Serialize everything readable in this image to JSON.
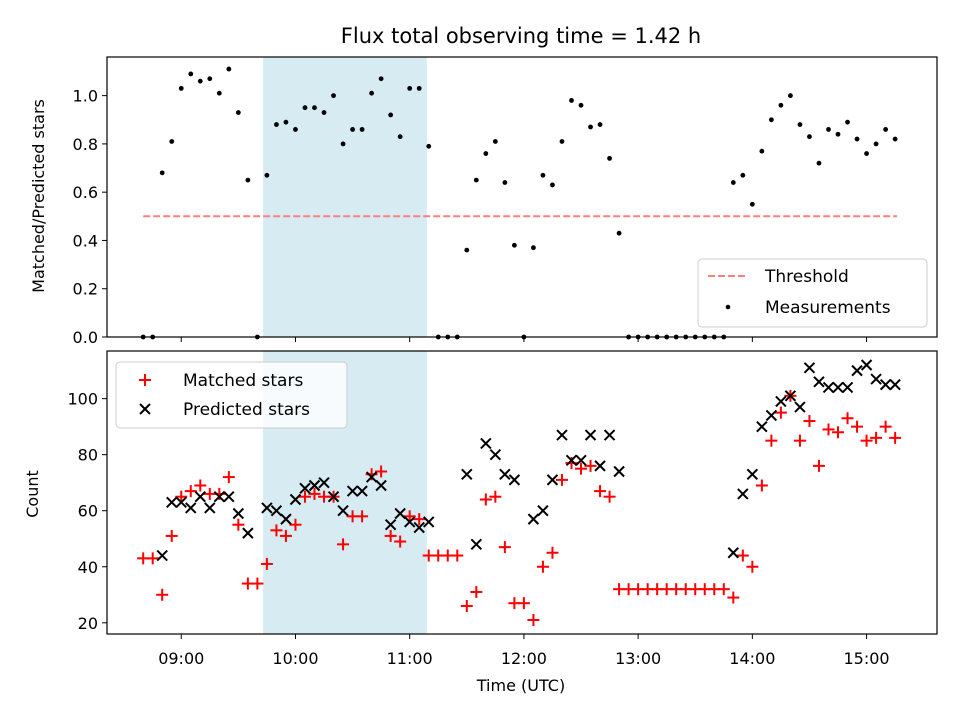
{
  "chart_data": [
    {
      "type": "scatter",
      "title": "Flux total observing time = 1.42 h",
      "ylabel": "Matched/Predicted stars",
      "xlabel": "",
      "xlim": [
        "08:21",
        "15:37"
      ],
      "ylim": [
        0,
        1.16
      ],
      "yticks": [
        "0.0",
        "0.2",
        "0.4",
        "0.6",
        "0.8",
        "1.0"
      ],
      "shaded_interval": [
        "09:43",
        "11:09"
      ],
      "shade_color": "#add8e6",
      "legend_position": "lower-right",
      "threshold": {
        "name": "Threshold",
        "y": 0.5,
        "x": [
          "08:40",
          "15:16"
        ],
        "color": "#ff7f7f",
        "style": "dashed"
      },
      "measurements": {
        "name": "Measurements",
        "color": "#000000",
        "points": [
          [
            "08:40",
            0.0
          ],
          [
            "08:45",
            0.0
          ],
          [
            "08:50",
            0.68
          ],
          [
            "08:55",
            0.81
          ],
          [
            "09:00",
            1.03
          ],
          [
            "09:05",
            1.09
          ],
          [
            "09:10",
            1.06
          ],
          [
            "09:15",
            1.07
          ],
          [
            "09:20",
            1.01
          ],
          [
            "09:25",
            1.11
          ],
          [
            "09:30",
            0.93
          ],
          [
            "09:35",
            0.65
          ],
          [
            "09:40",
            0.0
          ],
          [
            "09:45",
            0.67
          ],
          [
            "09:50",
            0.88
          ],
          [
            "09:55",
            0.89
          ],
          [
            "10:00",
            0.86
          ],
          [
            "10:05",
            0.95
          ],
          [
            "10:10",
            0.95
          ],
          [
            "10:15",
            0.93
          ],
          [
            "10:20",
            1.0
          ],
          [
            "10:25",
            0.8
          ],
          [
            "10:30",
            0.86
          ],
          [
            "10:35",
            0.86
          ],
          [
            "10:40",
            1.01
          ],
          [
            "10:45",
            1.07
          ],
          [
            "10:50",
            0.92
          ],
          [
            "10:55",
            0.83
          ],
          [
            "11:00",
            1.03
          ],
          [
            "11:05",
            1.03
          ],
          [
            "11:10",
            0.79
          ],
          [
            "11:15",
            0.0
          ],
          [
            "11:20",
            0.0
          ],
          [
            "11:25",
            0.0
          ],
          [
            "11:30",
            0.36
          ],
          [
            "11:35",
            0.65
          ],
          [
            "11:40",
            0.76
          ],
          [
            "11:45",
            0.81
          ],
          [
            "11:50",
            0.64
          ],
          [
            "11:55",
            0.38
          ],
          [
            "12:00",
            0.0
          ],
          [
            "12:05",
            0.37
          ],
          [
            "12:10",
            0.67
          ],
          [
            "12:15",
            0.63
          ],
          [
            "12:20",
            0.81
          ],
          [
            "12:25",
            0.98
          ],
          [
            "12:30",
            0.96
          ],
          [
            "12:35",
            0.87
          ],
          [
            "12:40",
            0.88
          ],
          [
            "12:45",
            0.74
          ],
          [
            "12:50",
            0.43
          ],
          [
            "12:55",
            0.0
          ],
          [
            "13:00",
            0.0
          ],
          [
            "13:05",
            0.0
          ],
          [
            "13:10",
            0.0
          ],
          [
            "13:15",
            0.0
          ],
          [
            "13:20",
            0.0
          ],
          [
            "13:25",
            0.0
          ],
          [
            "13:30",
            0.0
          ],
          [
            "13:35",
            0.0
          ],
          [
            "13:40",
            0.0
          ],
          [
            "13:45",
            0.0
          ],
          [
            "13:50",
            0.64
          ],
          [
            "13:55",
            0.67
          ],
          [
            "14:00",
            0.55
          ],
          [
            "14:05",
            0.77
          ],
          [
            "14:10",
            0.9
          ],
          [
            "14:15",
            0.96
          ],
          [
            "14:20",
            1.0
          ],
          [
            "14:25",
            0.88
          ],
          [
            "14:30",
            0.83
          ],
          [
            "14:35",
            0.72
          ],
          [
            "14:40",
            0.86
          ],
          [
            "14:45",
            0.84
          ],
          [
            "14:50",
            0.89
          ],
          [
            "14:55",
            0.82
          ],
          [
            "15:00",
            0.76
          ],
          [
            "15:05",
            0.8
          ],
          [
            "15:10",
            0.86
          ],
          [
            "15:15",
            0.82
          ]
        ]
      }
    },
    {
      "type": "scatter",
      "title": "",
      "ylabel": "Count",
      "xlabel": "Time (UTC)",
      "xlim": [
        "08:21",
        "15:37"
      ],
      "ylim": [
        16,
        117
      ],
      "yticks": [
        "20",
        "40",
        "60",
        "80",
        "100"
      ],
      "xticks": [
        "09:00",
        "10:00",
        "11:00",
        "12:00",
        "13:00",
        "14:00",
        "15:00"
      ],
      "shaded_interval": [
        "09:43",
        "11:09"
      ],
      "shade_color": "#add8e6",
      "legend_position": "upper-left",
      "series": [
        {
          "name": "Matched stars",
          "marker": "+",
          "color": "#ff0000",
          "points": [
            [
              "08:40",
              43
            ],
            [
              "08:45",
              43
            ],
            [
              "08:50",
              30
            ],
            [
              "08:55",
              51
            ],
            [
              "09:00",
              65
            ],
            [
              "09:05",
              67
            ],
            [
              "09:10",
              69
            ],
            [
              "09:15",
              66
            ],
            [
              "09:20",
              66
            ],
            [
              "09:25",
              72
            ],
            [
              "09:30",
              55
            ],
            [
              "09:35",
              34
            ],
            [
              "09:40",
              34
            ],
            [
              "09:45",
              41
            ],
            [
              "09:50",
              53
            ],
            [
              "09:55",
              51
            ],
            [
              "10:00",
              55
            ],
            [
              "10:05",
              65
            ],
            [
              "10:10",
              66
            ],
            [
              "10:15",
              65
            ],
            [
              "10:20",
              65
            ],
            [
              "10:25",
              48
            ],
            [
              "10:30",
              58
            ],
            [
              "10:35",
              58
            ],
            [
              "10:40",
              73
            ],
            [
              "10:45",
              74
            ],
            [
              "10:50",
              51
            ],
            [
              "10:55",
              49
            ],
            [
              "11:00",
              58
            ],
            [
              "11:05",
              57
            ],
            [
              "11:10",
              44
            ],
            [
              "11:15",
              44
            ],
            [
              "11:20",
              44
            ],
            [
              "11:25",
              44
            ],
            [
              "11:30",
              26
            ],
            [
              "11:35",
              31
            ],
            [
              "11:40",
              64
            ],
            [
              "11:45",
              65
            ],
            [
              "11:50",
              47
            ],
            [
              "11:55",
              27
            ],
            [
              "12:00",
              27
            ],
            [
              "12:05",
              21
            ],
            [
              "12:10",
              40
            ],
            [
              "12:15",
              45
            ],
            [
              "12:20",
              71
            ],
            [
              "12:25",
              77
            ],
            [
              "12:30",
              75
            ],
            [
              "12:35",
              76
            ],
            [
              "12:40",
              67
            ],
            [
              "12:45",
              65
            ],
            [
              "12:50",
              32
            ],
            [
              "12:55",
              32
            ],
            [
              "13:00",
              32
            ],
            [
              "13:05",
              32
            ],
            [
              "13:10",
              32
            ],
            [
              "13:15",
              32
            ],
            [
              "13:20",
              32
            ],
            [
              "13:25",
              32
            ],
            [
              "13:30",
              32
            ],
            [
              "13:35",
              32
            ],
            [
              "13:40",
              32
            ],
            [
              "13:45",
              32
            ],
            [
              "13:50",
              29
            ],
            [
              "13:55",
              44
            ],
            [
              "14:00",
              40
            ],
            [
              "14:05",
              69
            ],
            [
              "14:10",
              85
            ],
            [
              "14:15",
              95
            ],
            [
              "14:20",
              101
            ],
            [
              "14:25",
              85
            ],
            [
              "14:30",
              92
            ],
            [
              "14:35",
              76
            ],
            [
              "14:40",
              89
            ],
            [
              "14:45",
              88
            ],
            [
              "14:50",
              93
            ],
            [
              "14:55",
              90
            ],
            [
              "15:00",
              85
            ],
            [
              "15:05",
              86
            ],
            [
              "15:10",
              90
            ],
            [
              "15:15",
              86
            ]
          ]
        },
        {
          "name": "Predicted stars",
          "marker": "x",
          "color": "#000000",
          "points": [
            [
              "08:50",
              44
            ],
            [
              "08:55",
              63
            ],
            [
              "09:00",
              63
            ],
            [
              "09:05",
              61
            ],
            [
              "09:10",
              65
            ],
            [
              "09:15",
              61
            ],
            [
              "09:20",
              65
            ],
            [
              "09:25",
              65
            ],
            [
              "09:30",
              59
            ],
            [
              "09:35",
              52
            ],
            [
              "09:45",
              61
            ],
            [
              "09:50",
              60
            ],
            [
              "09:55",
              57
            ],
            [
              "10:00",
              64
            ],
            [
              "10:05",
              68
            ],
            [
              "10:10",
              69
            ],
            [
              "10:15",
              70
            ],
            [
              "10:20",
              65
            ],
            [
              "10:25",
              60
            ],
            [
              "10:30",
              67
            ],
            [
              "10:35",
              67
            ],
            [
              "10:40",
              72
            ],
            [
              "10:45",
              69
            ],
            [
              "10:50",
              55
            ],
            [
              "10:55",
              59
            ],
            [
              "11:00",
              56
            ],
            [
              "11:05",
              54
            ],
            [
              "11:10",
              56
            ],
            [
              "11:30",
              73
            ],
            [
              "11:35",
              48
            ],
            [
              "11:40",
              84
            ],
            [
              "11:45",
              80
            ],
            [
              "11:50",
              73
            ],
            [
              "11:55",
              71
            ],
            [
              "12:05",
              57
            ],
            [
              "12:10",
              60
            ],
            [
              "12:15",
              71
            ],
            [
              "12:20",
              87
            ],
            [
              "12:25",
              78
            ],
            [
              "12:30",
              78
            ],
            [
              "12:35",
              87
            ],
            [
              "12:40",
              76
            ],
            [
              "12:45",
              87
            ],
            [
              "12:50",
              74
            ],
            [
              "13:50",
              45
            ],
            [
              "13:55",
              66
            ],
            [
              "14:00",
              73
            ],
            [
              "14:05",
              90
            ],
            [
              "14:10",
              94
            ],
            [
              "14:15",
              99
            ],
            [
              "14:20",
              101
            ],
            [
              "14:25",
              97
            ],
            [
              "14:30",
              111
            ],
            [
              "14:35",
              106
            ],
            [
              "14:40",
              104
            ],
            [
              "14:45",
              104
            ],
            [
              "14:50",
              104
            ],
            [
              "14:55",
              110
            ],
            [
              "15:00",
              112
            ],
            [
              "15:05",
              107
            ],
            [
              "15:10",
              105
            ],
            [
              "15:15",
              105
            ]
          ]
        }
      ]
    }
  ]
}
